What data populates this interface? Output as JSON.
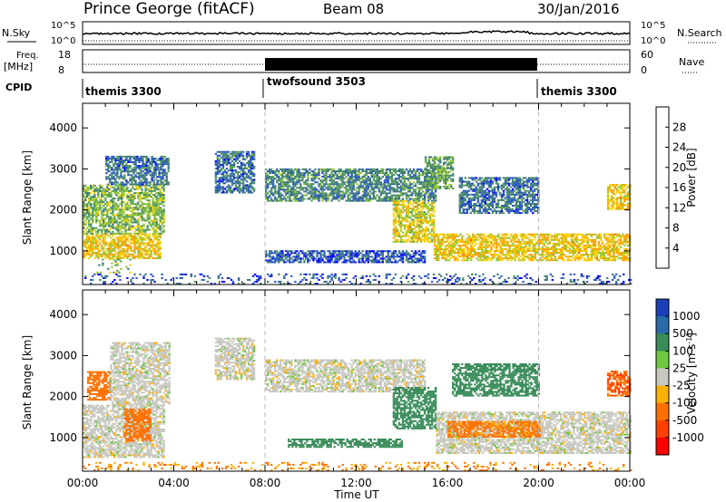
{
  "header": {
    "radar": "Prince George (fitACF)",
    "beam": "Beam 08",
    "date": "30/Jan/2016"
  },
  "noise_panel": {
    "left_label": "N.Sky",
    "right_label": "N.Search",
    "left_ticks": [
      "10^5",
      "10^0"
    ],
    "right_ticks": [
      "10^5",
      "10^0"
    ]
  },
  "freq_panel": {
    "left_label_1": "Freq.",
    "left_label_2": "[MHz]",
    "left_ticks": [
      "18",
      "8"
    ],
    "right_label": "Nave",
    "right_ticks": [
      "60",
      "0"
    ]
  },
  "cpid_panel": {
    "label": "CPID",
    "modes": [
      "themis 3300",
      "twofsound 3503",
      "themis 3300"
    ]
  },
  "colors": {
    "power": [
      "#0000ff",
      "#2a56c8",
      "#3f7a7a",
      "#58a058",
      "#98c830",
      "#ffd000",
      "#ffa000",
      "#ff6000",
      "#ff0000"
    ],
    "velocity": [
      "#1a3fb8",
      "#2a6aa8",
      "#3a8c5a",
      "#6cc840",
      "#c8c8c0",
      "#ffb000",
      "#ff7000",
      "#ff4000",
      "#ff0000"
    ]
  },
  "chart_data": [
    {
      "type": "heatmap",
      "title": "Power",
      "ylabel": "Slant Range [km]",
      "ylim": [
        180,
        4600
      ],
      "yticks": [
        "1000",
        "2000",
        "3000",
        "4000"
      ],
      "xlim": [
        "00:00",
        "24:00"
      ],
      "colorbar": {
        "label": "Power [dB]",
        "ticks": [
          "4",
          "8",
          "12",
          "16",
          "20",
          "24",
          "28"
        ],
        "range": [
          0,
          32
        ]
      },
      "echo_regions": [
        {
          "t_start": 0.0,
          "t_end": 3.4,
          "r_min": 800,
          "r_max": 1400,
          "value": 20
        },
        {
          "t_start": 0.0,
          "t_end": 3.6,
          "r_min": 1400,
          "r_max": 2600,
          "value": 14
        },
        {
          "t_start": 0.6,
          "t_end": 2.2,
          "r_min": 450,
          "r_max": 800,
          "value": 14
        },
        {
          "t_start": 1.0,
          "t_end": 3.8,
          "r_min": 2600,
          "r_max": 3300,
          "value": 8
        },
        {
          "t_start": 5.8,
          "t_end": 7.5,
          "r_min": 2400,
          "r_max": 3400,
          "value": 8
        },
        {
          "t_start": 8.0,
          "t_end": 15.5,
          "r_min": 2200,
          "r_max": 3000,
          "value": 10
        },
        {
          "t_start": 8.0,
          "t_end": 15.0,
          "r_min": 700,
          "r_max": 1000,
          "value": 6
        },
        {
          "t_start": 13.6,
          "t_end": 15.4,
          "r_min": 1200,
          "r_max": 2200,
          "value": 18
        },
        {
          "t_start": 15.4,
          "t_end": 24.0,
          "r_min": 750,
          "r_max": 1400,
          "value": 20
        },
        {
          "t_start": 15.0,
          "t_end": 16.2,
          "r_min": 2500,
          "r_max": 3300,
          "value": 12
        },
        {
          "t_start": 16.5,
          "t_end": 20.0,
          "r_min": 1900,
          "r_max": 2800,
          "value": 8
        },
        {
          "t_start": 23.0,
          "t_end": 24.0,
          "r_min": 2000,
          "r_max": 2600,
          "value": 20
        },
        {
          "t_start": 0.0,
          "t_end": 24.0,
          "r_min": 180,
          "r_max": 450,
          "value": 6
        }
      ]
    },
    {
      "type": "heatmap",
      "title": "Velocity",
      "ylabel": "Slant Range [km]",
      "ylim": [
        180,
        4600
      ],
      "yticks": [
        "1000",
        "2000",
        "3000",
        "4000"
      ],
      "xlabel": "Time UT",
      "xticks": [
        "00:00",
        "04:00",
        "08:00",
        "12:00",
        "16:00",
        "20:00",
        "00:00"
      ],
      "colorbar": {
        "label": "Velocity [m s^-1]",
        "ticks": [
          "1000",
          "500",
          "100",
          "25",
          "-25",
          "-100",
          "-500",
          "-1000"
        ]
      },
      "echo_regions": [
        {
          "t_start": 0.0,
          "t_end": 3.6,
          "r_min": 500,
          "r_max": 1800,
          "value": 0
        },
        {
          "t_start": 0.2,
          "t_end": 1.2,
          "r_min": 1900,
          "r_max": 2600,
          "value": -200
        },
        {
          "t_start": 1.8,
          "t_end": 3.0,
          "r_min": 900,
          "r_max": 1700,
          "value": -150
        },
        {
          "t_start": 1.2,
          "t_end": 3.8,
          "r_min": 1800,
          "r_max": 3300,
          "value": 0
        },
        {
          "t_start": 5.8,
          "t_end": 7.5,
          "r_min": 2400,
          "r_max": 3400,
          "value": 0
        },
        {
          "t_start": 8.0,
          "t_end": 15.0,
          "r_min": 2100,
          "r_max": 2900,
          "value": 0
        },
        {
          "t_start": 9.0,
          "t_end": 14.0,
          "r_min": 750,
          "r_max": 950,
          "value": 200
        },
        {
          "t_start": 13.6,
          "t_end": 15.5,
          "r_min": 1200,
          "r_max": 2200,
          "value": 150
        },
        {
          "t_start": 15.5,
          "t_end": 24.0,
          "r_min": 600,
          "r_max": 1600,
          "value": 0
        },
        {
          "t_start": 16.0,
          "t_end": 20.0,
          "r_min": 1000,
          "r_max": 1400,
          "value": -80
        },
        {
          "t_start": 16.2,
          "t_end": 20.0,
          "r_min": 2000,
          "r_max": 2800,
          "value": 200
        },
        {
          "t_start": 23.0,
          "t_end": 24.0,
          "r_min": 2000,
          "r_max": 2600,
          "value": -300
        },
        {
          "t_start": 0.0,
          "t_end": 24.0,
          "r_min": 180,
          "r_max": 400,
          "value": -60
        }
      ]
    }
  ]
}
